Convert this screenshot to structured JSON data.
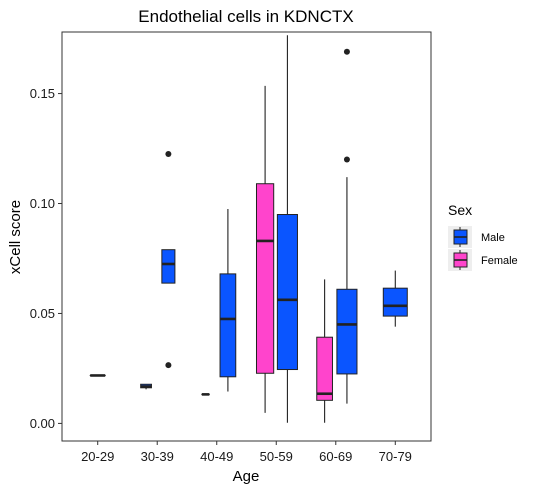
{
  "chart_data": {
    "type": "boxplot",
    "title": "Endothelial cells in KDNCTX",
    "xlabel": "Age",
    "ylabel": "xCell score",
    "categories": [
      "20-29",
      "30-39",
      "40-49",
      "50-59",
      "60-69",
      "70-79"
    ],
    "ylim": [
      -0.008,
      0.178
    ],
    "yticks": [
      0.0,
      0.05,
      0.1,
      0.15
    ],
    "ytick_labels": [
      "0.00",
      "0.05",
      "0.10",
      "0.15"
    ],
    "grid": false,
    "legend": {
      "title": "Sex",
      "position": "right",
      "entries": [
        {
          "key": "male",
          "label": "Male",
          "color": "#0a55ff"
        },
        {
          "key": "female",
          "label": "Female",
          "color": "#ff44cc"
        }
      ]
    },
    "boxes": [
      {
        "category": "20-29",
        "sex": "male",
        "n": 1,
        "lower_whisker": 0.0218,
        "q1": 0.0218,
        "median": 0.0218,
        "q3": 0.0218,
        "upper_whisker": 0.0218,
        "outliers": []
      },
      {
        "category": "30-39",
        "sex": "male",
        "n": 3,
        "lower_whisker": 0.0155,
        "q1": 0.0162,
        "median": 0.0168,
        "q3": 0.0178,
        "upper_whisker": 0.0178,
        "outliers": []
      },
      {
        "category": "30-39",
        "sex": "male",
        "n": 5,
        "lower_whisker": 0.0638,
        "q1": 0.0638,
        "median": 0.0725,
        "q3": 0.079,
        "upper_whisker": 0.079,
        "outliers": [
          0.1225,
          0.0265
        ]
      },
      {
        "category": "40-49",
        "sex": "male",
        "n": 1,
        "lower_whisker": 0.0132,
        "q1": 0.0132,
        "median": 0.0132,
        "q3": 0.0132,
        "upper_whisker": 0.0132,
        "outliers": []
      },
      {
        "category": "40-49",
        "sex": "male",
        "n": 8,
        "lower_whisker": 0.0145,
        "q1": 0.0212,
        "median": 0.0475,
        "q3": 0.068,
        "upper_whisker": 0.0975,
        "outliers": []
      },
      {
        "category": "50-59",
        "sex": "female",
        "n": 10,
        "lower_whisker": 0.0048,
        "q1": 0.0228,
        "median": 0.083,
        "q3": 0.109,
        "upper_whisker": 0.1535,
        "outliers": []
      },
      {
        "category": "50-59",
        "sex": "male",
        "n": 20,
        "lower_whisker": 0.0003,
        "q1": 0.0245,
        "median": 0.0562,
        "q3": 0.095,
        "upper_whisker": 0.1765,
        "outliers": []
      },
      {
        "category": "60-69",
        "sex": "female",
        "n": 8,
        "lower_whisker": 0.0003,
        "q1": 0.0105,
        "median": 0.0135,
        "q3": 0.0392,
        "upper_whisker": 0.0655,
        "outliers": []
      },
      {
        "category": "60-69",
        "sex": "male",
        "n": 20,
        "lower_whisker": 0.009,
        "q1": 0.0225,
        "median": 0.045,
        "q3": 0.061,
        "upper_whisker": 0.112,
        "outliers": [
          0.169,
          0.12
        ]
      },
      {
        "category": "70-79",
        "sex": "male",
        "n": 4,
        "lower_whisker": 0.044,
        "q1": 0.0488,
        "median": 0.0535,
        "q3": 0.0615,
        "upper_whisker": 0.0695,
        "outliers": []
      }
    ]
  }
}
